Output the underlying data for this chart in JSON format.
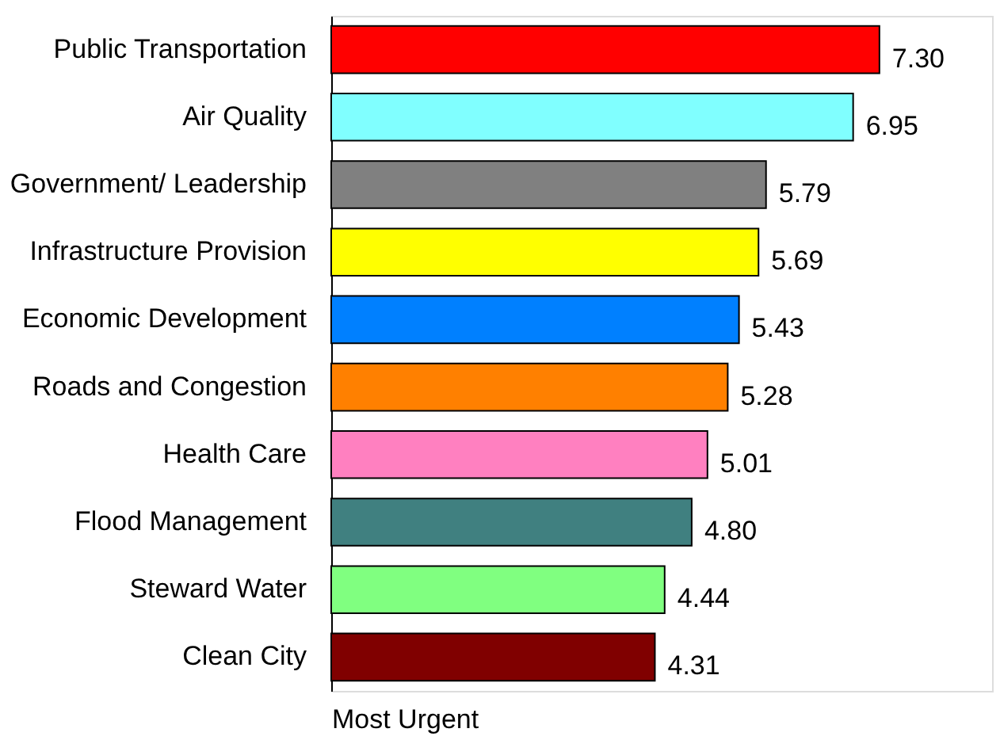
{
  "chart_data": {
    "type": "bar",
    "orientation": "horizontal",
    "xlabel": "Most Urgent",
    "categories": [
      "Public Transportation",
      "Air Quality",
      "Government/ Leadership",
      "Infrastructure Provision",
      "Economic Development",
      "Roads and Congestion",
      "Health Care",
      "Flood Management",
      "Steward Water",
      "Clean City"
    ],
    "values": [
      7.3,
      6.95,
      5.79,
      5.69,
      5.43,
      5.28,
      5.01,
      4.8,
      4.44,
      4.31
    ],
    "value_labels": [
      "7.30",
      "6.95",
      "5.79",
      "5.69",
      "5.43",
      "5.28",
      "5.01",
      "4.80",
      "4.44",
      "4.31"
    ],
    "colors": [
      "#ff0000",
      "#80ffff",
      "#808080",
      "#ffff00",
      "#0080ff",
      "#ff8000",
      "#ff80c0",
      "#408080",
      "#80ff80",
      "#800000"
    ],
    "xlim": [
      0,
      8.8
    ],
    "grid": false,
    "legend": false
  }
}
